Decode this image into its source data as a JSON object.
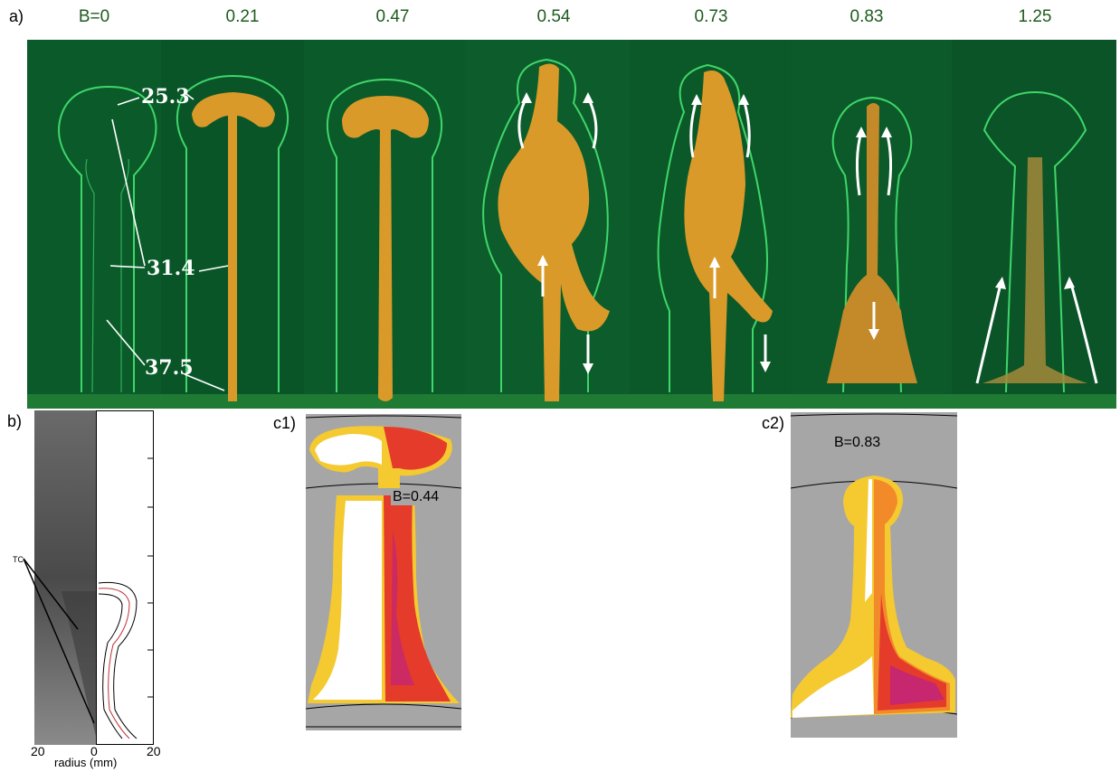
{
  "panel_a": {
    "letter": "a)",
    "b_values": [
      "B=0",
      "0.21",
      "0.47",
      "0.54",
      "0.73",
      "0.83",
      "1.25"
    ],
    "isotherms": [
      "25.3",
      "31.4",
      "37.5"
    ]
  },
  "panel_b": {
    "letter": "b)",
    "tc_label": "TC",
    "x_ticks": [
      "20",
      "0",
      "20"
    ],
    "xlabel": "radius (mm)"
  },
  "panel_c1": {
    "letter": "c1)",
    "b_label": "B=0.44"
  },
  "panel_c2": {
    "letter": "c2)",
    "b_label": "B=0.83"
  },
  "colors": {
    "tank_green": "#0b5a2a",
    "plume_orange": "#d99a2a",
    "contour_green": "#3fd66a",
    "sim_gray": "#a6a6a6"
  }
}
